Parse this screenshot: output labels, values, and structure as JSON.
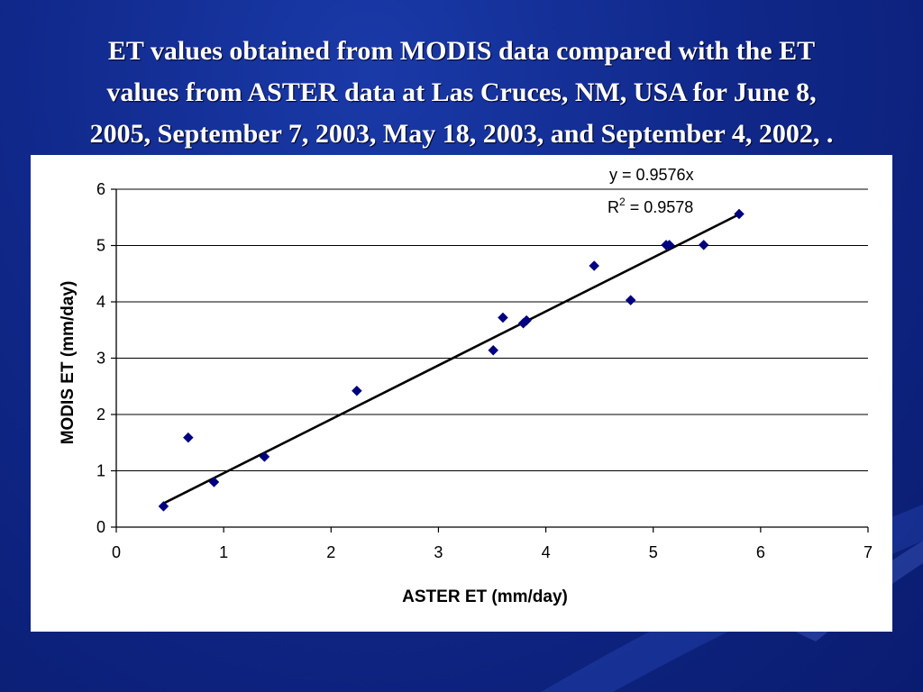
{
  "slide": {
    "title_lines": [
      "ET values obtained from MODIS data compared with the ET",
      "values from ASTER data at Las Cruces, NM, USA for June 8,",
      "2005, September 7, 2003, May 18, 2003, and September 4, 2002, ."
    ]
  },
  "chart_data": {
    "type": "scatter",
    "title": "",
    "xlabel": "ASTER ET (mm/day)",
    "ylabel": "MODIS ET (mm/day)",
    "xlim": [
      0,
      7
    ],
    "ylim": [
      0,
      6
    ],
    "x_ticks": [
      "0",
      "1",
      "2",
      "3",
      "4",
      "5",
      "6",
      "7"
    ],
    "y_ticks": [
      "0",
      "1",
      "2",
      "3",
      "4",
      "5",
      "6"
    ],
    "grid": "horizontal major gridlines",
    "marker": "diamond",
    "marker_color": "#000080",
    "points": [
      {
        "x": 0.44,
        "y": 0.37
      },
      {
        "x": 0.67,
        "y": 1.59
      },
      {
        "x": 0.91,
        "y": 0.8
      },
      {
        "x": 1.38,
        "y": 1.25
      },
      {
        "x": 2.24,
        "y": 2.42
      },
      {
        "x": 3.51,
        "y": 3.14
      },
      {
        "x": 3.6,
        "y": 3.72
      },
      {
        "x": 3.79,
        "y": 3.62
      },
      {
        "x": 3.82,
        "y": 3.67
      },
      {
        "x": 4.45,
        "y": 4.64
      },
      {
        "x": 4.79,
        "y": 4.03
      },
      {
        "x": 5.12,
        "y": 5.01
      },
      {
        "x": 5.15,
        "y": 5.01
      },
      {
        "x": 5.47,
        "y": 5.01
      },
      {
        "x": 5.8,
        "y": 5.56
      }
    ],
    "trendline": {
      "type": "linear",
      "slope": 0.9576,
      "intercept": 0,
      "x_range": [
        0.44,
        5.8
      ],
      "equation": "y = 0.9576x",
      "r2_prefix": "R",
      "r2_sup": "2",
      "r2_value": " = 0.9578"
    }
  }
}
